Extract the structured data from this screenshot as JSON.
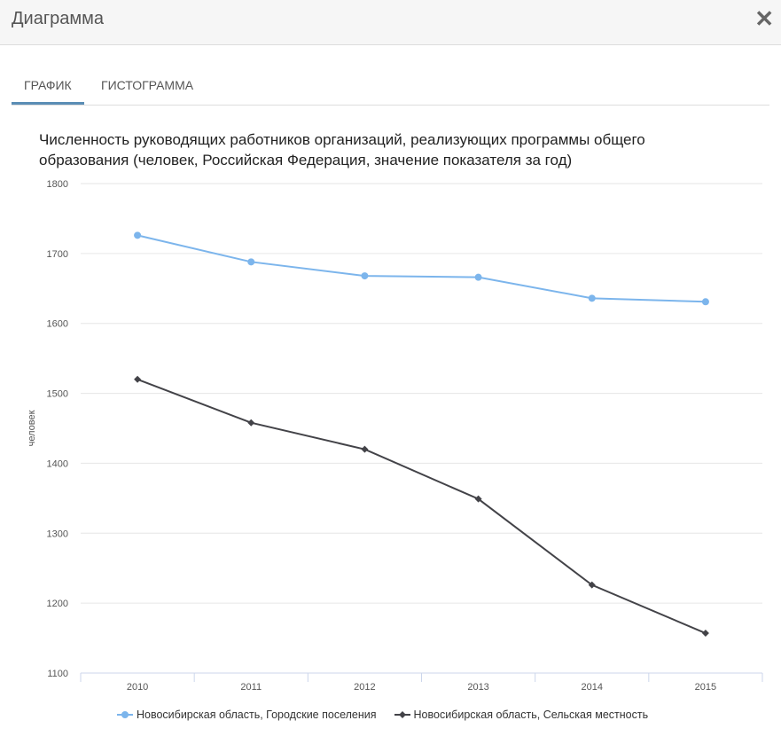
{
  "header": {
    "title": "Диаграмма",
    "close_icon": "close-icon"
  },
  "tabs": [
    {
      "label": "ГРАФИК",
      "active": true
    },
    {
      "label": "ГИСТОГРАММА",
      "active": false
    }
  ],
  "chart_data": {
    "type": "line",
    "title_line1": "Численность руководящих работников организаций, реализующих программы общего",
    "title_line2": "образования (человек, Российская Федерация, значение показателя за год)",
    "ylabel": "человек",
    "xlabel": "",
    "categories": [
      "2010",
      "2011",
      "2012",
      "2013",
      "2014",
      "2015"
    ],
    "ylim": [
      1100,
      1800
    ],
    "yticks": [
      "1100",
      "1200",
      "1300",
      "1400",
      "1500",
      "1600",
      "1700",
      "1800"
    ],
    "grid": true,
    "legend_position": "bottom",
    "series": [
      {
        "name": "Новосибирская область, Городские поселения",
        "color": "#7cb5ec",
        "marker": "circle",
        "values": [
          1726,
          1688,
          1668,
          1666,
          1636,
          1631
        ]
      },
      {
        "name": "Новосибирская область, Сельская местность",
        "color": "#434348",
        "marker": "diamond",
        "values": [
          1520,
          1458,
          1420,
          1349,
          1226,
          1157
        ]
      }
    ]
  }
}
